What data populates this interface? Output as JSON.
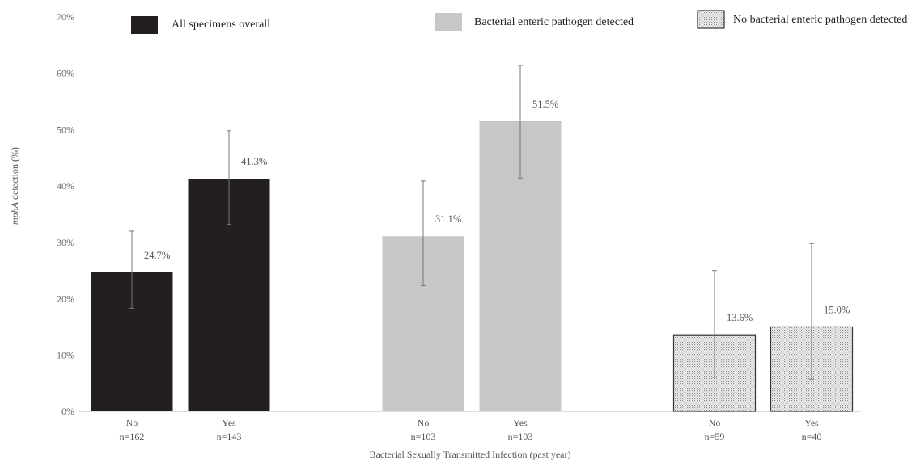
{
  "chart_data": {
    "type": "bar",
    "xlabel": "Bacterial Sexually Transmitted Infection (past year)",
    "ylabel_italic": "mphA",
    "ylabel_rest": " detection (%)",
    "ylim": [
      0,
      70
    ],
    "yticks": [
      "0%",
      "10%",
      "20%",
      "30%",
      "40%",
      "50%",
      "60%",
      "70%"
    ],
    "grid": false,
    "legend_position": "top",
    "series": [
      {
        "name": "All specimens overall",
        "color": "#231f20",
        "pattern": "solid",
        "bars": [
          {
            "label": "No",
            "n": "n=162",
            "value": 24.7,
            "value_label": "24.7%",
            "ci": [
              18.3,
              32.0
            ]
          },
          {
            "label": "Yes",
            "n": "n=143",
            "value": 41.3,
            "value_label": "41.3%",
            "ci": [
              33.2,
              49.8
            ]
          }
        ]
      },
      {
        "name": "Bacterial enteric pathogen detected",
        "color": "#c6c7c9",
        "pattern": "solid",
        "bars": [
          {
            "label": "No",
            "n": "n=103",
            "value": 31.1,
            "value_label": "31.1%",
            "ci": [
              22.3,
              40.9
            ]
          },
          {
            "label": "Yes",
            "n": "n=103",
            "value": 51.5,
            "value_label": "51.5%",
            "ci": [
              41.4,
              61.4
            ]
          }
        ]
      },
      {
        "name": "No bacterial enteric pathogen detected",
        "color": "#e9e9e9",
        "pattern": "dots",
        "bars": [
          {
            "label": "No",
            "n": "n=59",
            "value": 13.6,
            "value_label": "13.6%",
            "ci": [
              6.0,
              25.0
            ]
          },
          {
            "label": "Yes",
            "n": "n=40",
            "value": 15.0,
            "value_label": "15.0%",
            "ci": [
              5.7,
              29.8
            ]
          }
        ]
      }
    ]
  }
}
